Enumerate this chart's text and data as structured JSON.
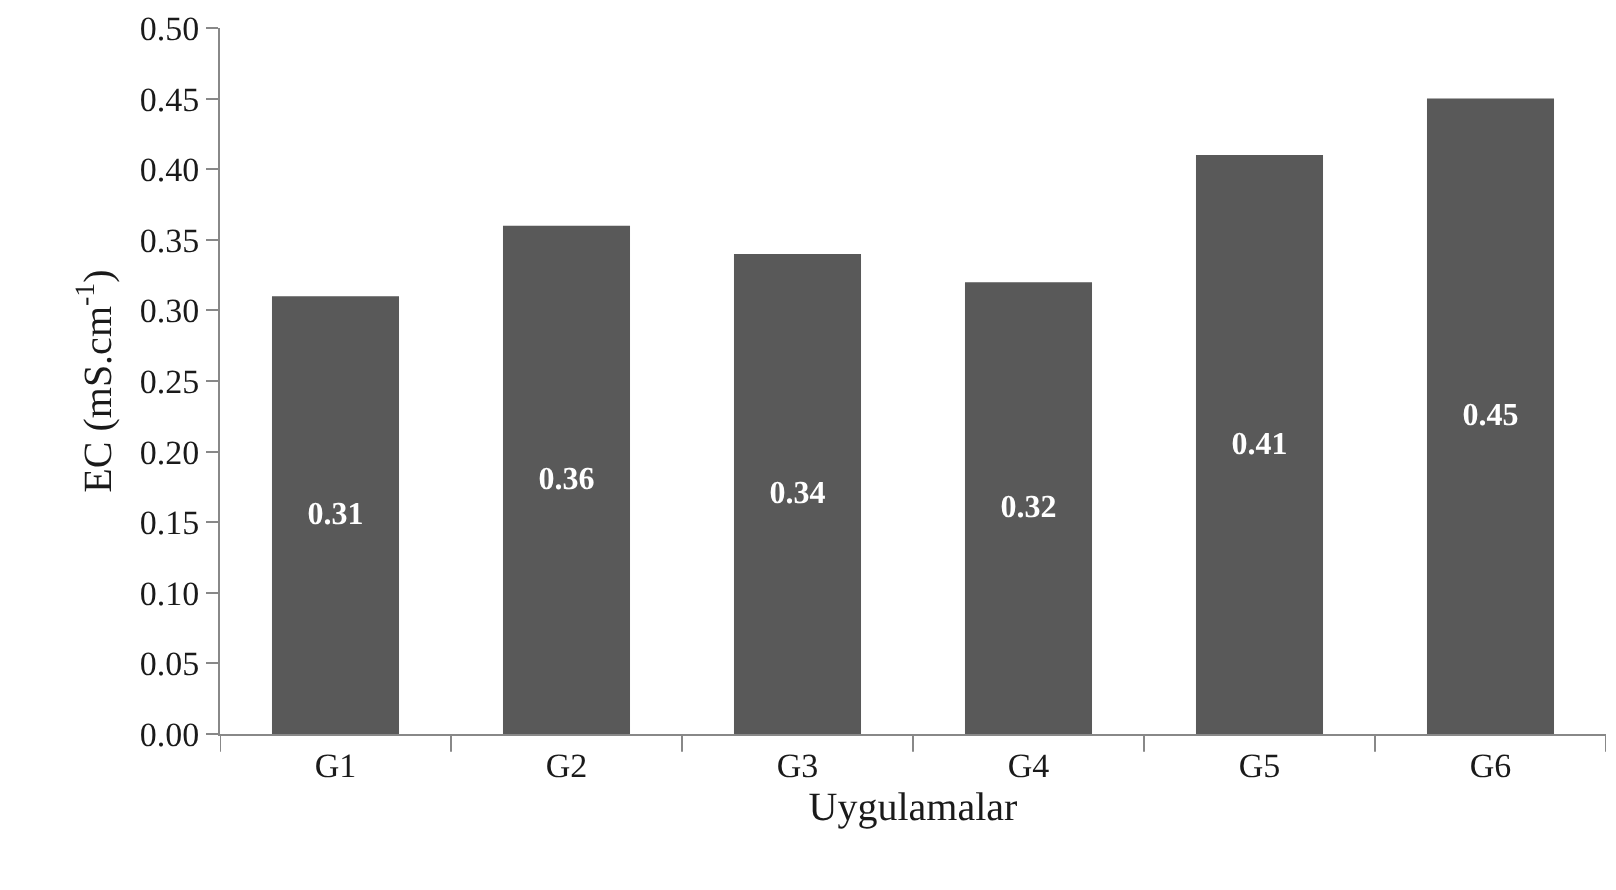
{
  "chart_data": {
    "type": "bar",
    "xlabel": "Uygulamalar",
    "ylabel": "EC (mS.cm$^{-1}$)",
    "categories": [
      "G1",
      "G2",
      "G3",
      "G4",
      "G5",
      "G6"
    ],
    "values": [
      0.31,
      0.36,
      0.34,
      0.32,
      0.41,
      0.45
    ],
    "color": "#595959",
    "data_labels": true,
    "ylim": [
      0,
      0.5
    ],
    "yticks": [
      {
        "value": 0,
        "label": "0.00"
      },
      {
        "value": 0.05,
        "label": "0.05"
      },
      {
        "value": 0.1,
        "label": "0.10"
      },
      {
        "value": 0.15,
        "label": "0.15"
      },
      {
        "value": 0.2,
        "label": "0.20"
      },
      {
        "value": 0.25,
        "label": "0.25"
      },
      {
        "value": 0.3,
        "label": "0.30"
      },
      {
        "value": 0.35,
        "label": "0.35"
      },
      {
        "value": 0.4,
        "label": "0.40"
      },
      {
        "value": 0.45,
        "label": "0.45"
      },
      {
        "value": 0.5,
        "label": "0.50"
      }
    ]
  }
}
